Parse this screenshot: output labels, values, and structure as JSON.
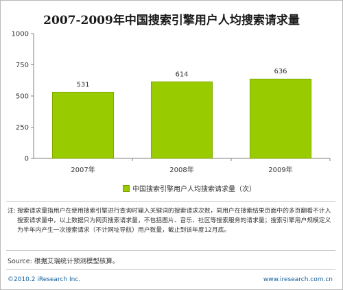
{
  "chart_data": {
    "type": "bar",
    "title": "2007-2009年中国搜索引擎用户人均搜索请求量",
    "categories": [
      "2007年",
      "2008年",
      "2009年"
    ],
    "series": [
      {
        "name": "中国搜索引擎用户人均搜索请求量（次）",
        "values": [
          531,
          614,
          636
        ]
      }
    ],
    "ylim": [
      0,
      1000
    ],
    "yticks": [
      0,
      250,
      500,
      750,
      1000
    ],
    "xlabel": "",
    "ylabel": "",
    "grid": false,
    "legend": "bottom-center",
    "bar_color": "#99cc00",
    "bar_border_color": "#7a9f00"
  },
  "note": {
    "prefix": "注:",
    "text": "搜索请求量指用户在使用搜索引擎进行查询时输入关键词的搜索请求次数，同用户在搜索结果页面中的多页翻看不计入搜索请求量中，以上数据只为网页搜索请求量，不包括图片、音乐、社区等搜索服务的请求量；搜索引擎用户规模定义为半年内产生一次搜索请求（不计网址导航）用户数量，截止到该年度12月底。"
  },
  "source": "Source: 根据艾瑞统计预测模型核算。",
  "footer": {
    "copyright": "©2010.2 iResearch Inc.",
    "website": "www.iresearch.com.cn"
  },
  "colors": {
    "footer_text": "#0f5d9c",
    "axis": "#808080"
  }
}
